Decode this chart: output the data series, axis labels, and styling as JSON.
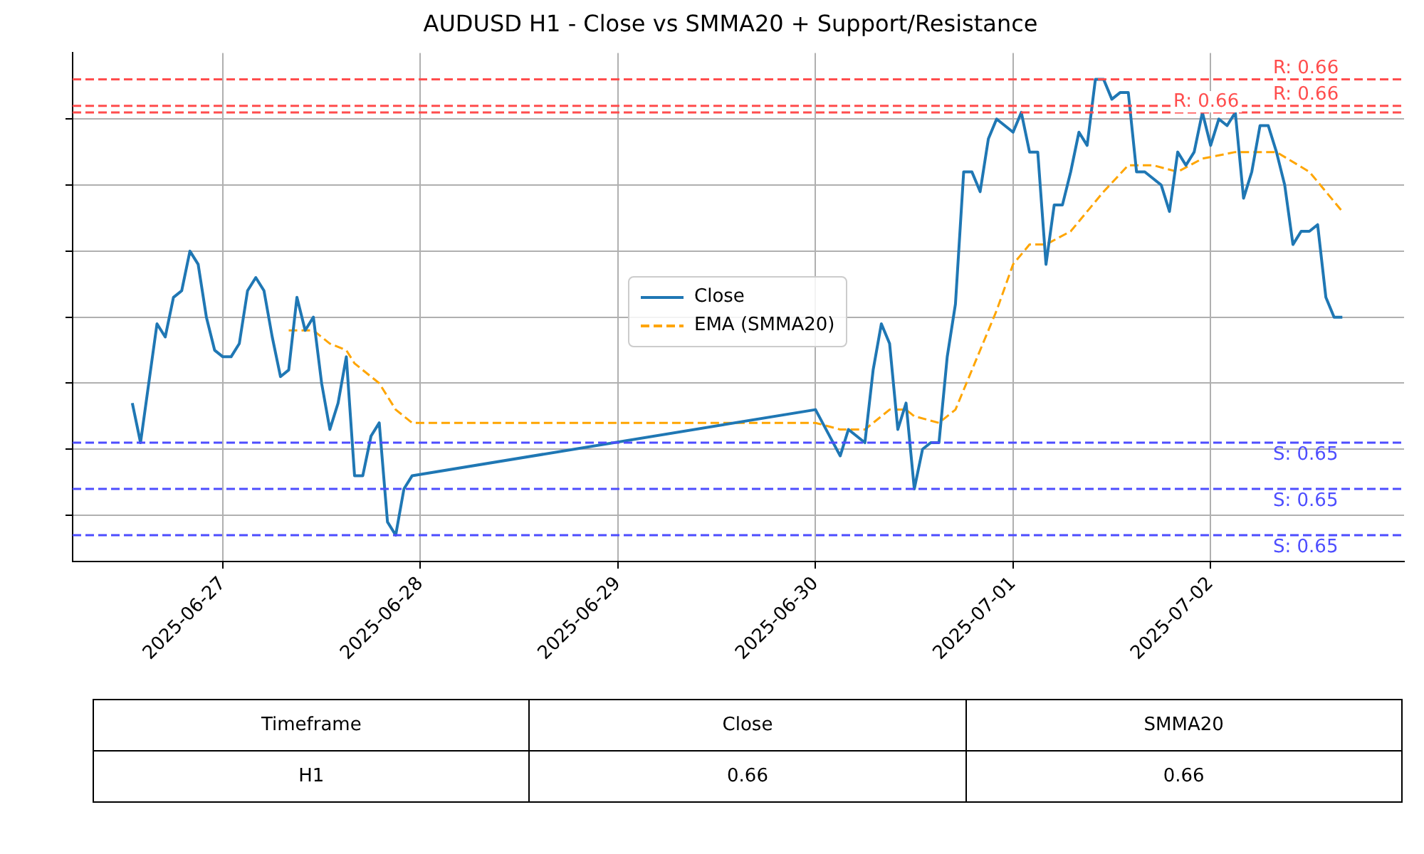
{
  "chart_data": {
    "type": "line",
    "title": "AUDUSD H1 - Close vs SMMA20 + Support/Resistance",
    "grid": true,
    "legend": "center",
    "tick_labels": "x",
    "xlim": [
      "2025-06-26T05:45",
      "2025-07-02T23:30"
    ],
    "xticks": [
      "2025-06-27",
      "2025-06-28",
      "2025-06-29",
      "2025-06-30",
      "2025-07-01",
      "2025-07-02"
    ],
    "ylim": [
      0.6513,
      0.659
    ],
    "yticks": [
      {
        "value": 0.652,
        "label": null
      },
      {
        "value": 0.653,
        "label": null
      },
      {
        "value": 0.654,
        "label": null
      },
      {
        "value": 0.655,
        "label": null
      },
      {
        "value": 0.656,
        "label": null
      },
      {
        "value": 0.657,
        "label": null
      },
      {
        "value": 0.658,
        "label": null
      }
    ],
    "series": [
      {
        "name": "Close",
        "color": "#1f77b4",
        "line_style": "solid",
        "x": [
          "2025-06-26T13:00",
          "2025-06-26T14:00",
          "2025-06-26T16:00",
          "2025-06-26T17:00",
          "2025-06-26T18:00",
          "2025-06-26T19:00",
          "2025-06-26T20:00",
          "2025-06-26T21:00",
          "2025-06-26T22:00",
          "2025-06-26T23:00",
          "2025-06-27T00:00",
          "2025-06-27T01:00",
          "2025-06-27T02:00",
          "2025-06-27T03:00",
          "2025-06-27T04:00",
          "2025-06-27T05:00",
          "2025-06-27T06:00",
          "2025-06-27T07:00",
          "2025-06-27T08:00",
          "2025-06-27T09:00",
          "2025-06-27T10:00",
          "2025-06-27T11:00",
          "2025-06-27T12:00",
          "2025-06-27T13:00",
          "2025-06-27T14:00",
          "2025-06-27T15:00",
          "2025-06-27T16:00",
          "2025-06-27T17:00",
          "2025-06-27T18:00",
          "2025-06-27T19:00",
          "2025-06-27T20:00",
          "2025-06-27T21:00",
          "2025-06-27T22:00",
          "2025-06-27T23:00",
          "2025-06-30T00:00",
          "2025-06-30T03:00",
          "2025-06-30T04:00",
          "2025-06-30T05:00",
          "2025-06-30T06:00",
          "2025-06-30T07:00",
          "2025-06-30T08:00",
          "2025-06-30T09:00",
          "2025-06-30T10:00",
          "2025-06-30T11:00",
          "2025-06-30T12:00",
          "2025-06-30T13:00",
          "2025-06-30T14:00",
          "2025-06-30T15:00",
          "2025-06-30T16:00",
          "2025-06-30T17:00",
          "2025-06-30T18:00",
          "2025-06-30T19:00",
          "2025-06-30T20:00",
          "2025-06-30T21:00",
          "2025-06-30T22:00",
          "2025-06-30T23:00",
          "2025-07-01T00:00",
          "2025-07-01T01:00",
          "2025-07-01T02:00",
          "2025-07-01T03:00",
          "2025-07-01T04:00",
          "2025-07-01T05:00",
          "2025-07-01T06:00",
          "2025-07-01T07:00",
          "2025-07-01T08:00",
          "2025-07-01T09:00",
          "2025-07-01T10:00",
          "2025-07-01T11:00",
          "2025-07-01T12:00",
          "2025-07-01T13:00",
          "2025-07-01T14:00",
          "2025-07-01T15:00",
          "2025-07-01T16:00",
          "2025-07-01T17:00",
          "2025-07-01T18:00",
          "2025-07-01T19:00",
          "2025-07-01T20:00",
          "2025-07-01T21:00",
          "2025-07-01T22:00",
          "2025-07-01T23:00",
          "2025-07-02T00:00",
          "2025-07-02T01:00",
          "2025-07-02T02:00",
          "2025-07-02T03:00",
          "2025-07-02T04:00",
          "2025-07-02T05:00",
          "2025-07-02T06:00",
          "2025-07-02T07:00",
          "2025-07-02T08:00",
          "2025-07-02T09:00",
          "2025-07-02T10:00",
          "2025-07-02T11:00",
          "2025-07-02T12:00",
          "2025-07-02T13:00",
          "2025-07-02T14:00",
          "2025-07-02T15:00",
          "2025-07-02T16:00"
        ],
        "values": [
          0.6537,
          0.6531,
          0.6549,
          0.6547,
          0.6553,
          0.6554,
          0.656,
          0.6558,
          0.655,
          0.6545,
          0.6544,
          0.6544,
          0.6546,
          0.6554,
          0.6556,
          0.6554,
          0.6547,
          0.6541,
          0.6542,
          0.6553,
          0.6548,
          0.655,
          0.654,
          0.6533,
          0.6537,
          0.6544,
          0.6526,
          0.6526,
          0.6532,
          0.6534,
          0.6519,
          0.6517,
          0.6524,
          0.6526,
          0.6536,
          0.6529,
          0.6533,
          0.6532,
          0.6531,
          0.6542,
          0.6549,
          0.6546,
          0.6533,
          0.6537,
          0.6524,
          0.653,
          0.6531,
          0.6531,
          0.6544,
          0.6552,
          0.6572,
          0.6572,
          0.6569,
          0.6577,
          0.658,
          0.6579,
          0.6578,
          0.6581,
          0.6575,
          0.6575,
          0.6558,
          0.6567,
          0.6567,
          0.6572,
          0.6578,
          0.6576,
          0.6586,
          0.6586,
          0.6583,
          0.6584,
          0.6584,
          0.6572,
          0.6572,
          0.6571,
          0.657,
          0.6566,
          0.6575,
          0.6573,
          0.6575,
          0.6581,
          0.6576,
          0.658,
          0.6579,
          0.6581,
          0.6568,
          0.6572,
          0.6579,
          0.6579,
          0.6575,
          0.657,
          0.6561,
          0.6563,
          0.6563,
          0.6564,
          0.6553,
          0.655,
          0.655
        ]
      },
      {
        "name": "EMA (SMMA20)",
        "color": "#ffa500",
        "line_style": "dashed",
        "x": [
          "2025-06-27T08:00",
          "2025-06-27T09:00",
          "2025-06-27T11:00",
          "2025-06-27T13:00",
          "2025-06-27T15:00",
          "2025-06-27T16:00",
          "2025-06-27T18:00",
          "2025-06-27T19:00",
          "2025-06-27T21:00",
          "2025-06-27T23:00",
          "2025-06-30T00:00",
          "2025-06-30T03:00",
          "2025-06-30T06:00",
          "2025-06-30T08:00",
          "2025-06-30T09:00",
          "2025-06-30T11:00",
          "2025-06-30T12:00",
          "2025-06-30T15:00",
          "2025-06-30T17:00",
          "2025-06-30T19:00",
          "2025-06-30T22:00",
          "2025-07-01T00:00",
          "2025-07-01T02:00",
          "2025-07-01T04:00",
          "2025-07-01T07:00",
          "2025-07-01T09:00",
          "2025-07-01T11:00",
          "2025-07-01T14:00",
          "2025-07-01T17:00",
          "2025-07-01T20:00",
          "2025-07-01T23:00",
          "2025-07-02T03:00",
          "2025-07-02T06:00",
          "2025-07-02T08:00",
          "2025-07-02T12:00",
          "2025-07-02T14:00",
          "2025-07-02T16:00"
        ],
        "values": [
          0.6548,
          0.6548,
          0.6548,
          0.6546,
          0.6545,
          0.6543,
          0.6541,
          0.654,
          0.6536,
          0.6534,
          0.6534,
          0.6533,
          0.6533,
          0.6535,
          0.6536,
          0.6536,
          0.6535,
          0.6534,
          0.6536,
          0.6542,
          0.6551,
          0.6558,
          0.6561,
          0.6561,
          0.6563,
          0.6566,
          0.6569,
          0.6573,
          0.6573,
          0.6572,
          0.6574,
          0.6575,
          0.6575,
          0.6575,
          0.6572,
          0.6569,
          0.6566
        ]
      }
    ],
    "ref_lines": [
      {
        "axis": "y",
        "value": 0.6586,
        "label": "R: 0.66",
        "color": "#ff4d4d",
        "line_style": "dashed"
      },
      {
        "axis": "y",
        "value": 0.6582,
        "label": "R: 0.66",
        "color": "#ff4d4d",
        "line_style": "dashed"
      },
      {
        "axis": "y",
        "value": 0.6581,
        "label": "R: 0.66",
        "color": "#ff4d4d",
        "line_style": "dashed"
      },
      {
        "axis": "y",
        "value": 0.6531,
        "label": "S: 0.65",
        "color": "#4d4dff",
        "line_style": "dashed"
      },
      {
        "axis": "y",
        "value": 0.6524,
        "label": "S: 0.65",
        "color": "#4d4dff",
        "line_style": "dashed"
      },
      {
        "axis": "y",
        "value": 0.6517,
        "label": "S: 0.65",
        "color": "#4d4dff",
        "line_style": "dashed"
      }
    ],
    "annotations": [
      "Timeframe",
      "Close",
      "SMMA20",
      "H1",
      "0.66",
      "0.66"
    ]
  }
}
